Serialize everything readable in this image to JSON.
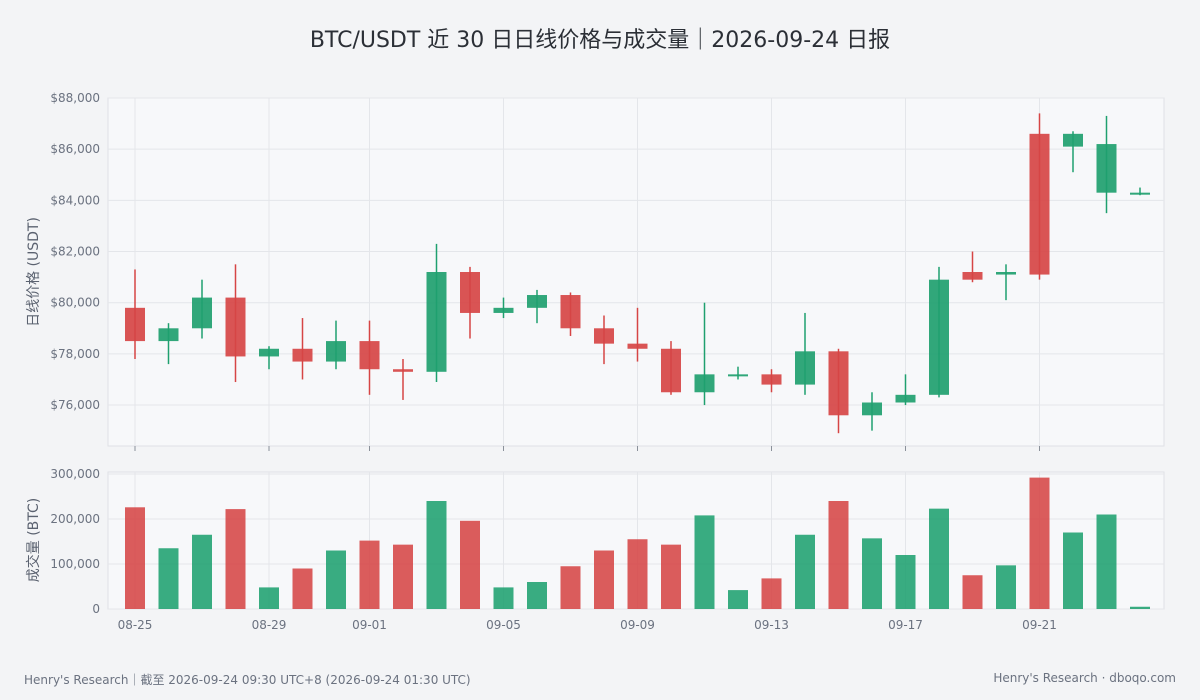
{
  "title": "BTC/USDT 近 30 日日线价格与成交量｜2026-09-24 日报",
  "footer": {
    "left": "Henry's Research｜截至 2026-09-24 09:30 UTC+8 (2026-09-24 01:30 UTC)",
    "right": "Henry's Research · dboqo.com"
  },
  "colors": {
    "up": "#1fa06f",
    "down": "#d64545"
  },
  "chart_data": [
    {
      "type": "candlestick",
      "ylabel": "日线价格 (USDT)",
      "ylim": [
        74400,
        88000
      ],
      "yticks": [
        "$76,000",
        "$78,000",
        "$80,000",
        "$82,000",
        "$84,000",
        "$86,000",
        "$88,000"
      ],
      "ytick_values": [
        76000,
        78000,
        80000,
        82000,
        84000,
        86000,
        88000
      ],
      "xticks": [
        "08-25",
        "08-29",
        "09-01",
        "09-05",
        "09-09",
        "09-13",
        "09-17",
        "09-21"
      ],
      "grid": true,
      "dates": [
        "08-25",
        "08-26",
        "08-27",
        "08-28",
        "08-29",
        "08-30",
        "08-31",
        "09-01",
        "09-02",
        "09-03",
        "09-04",
        "09-05",
        "09-06",
        "09-07",
        "09-08",
        "09-09",
        "09-10",
        "09-11",
        "09-12",
        "09-13",
        "09-14",
        "09-15",
        "09-16",
        "09-17",
        "09-18",
        "09-19",
        "09-20",
        "09-21",
        "09-22",
        "09-23",
        "09-24"
      ],
      "open": [
        79800,
        78500,
        79000,
        80200,
        77900,
        78200,
        77700,
        78500,
        77400,
        77300,
        81200,
        79600,
        79800,
        80300,
        79000,
        78400,
        78200,
        76500,
        77200,
        77200,
        76800,
        78100,
        75600,
        76100,
        76400,
        81200,
        81100,
        86600,
        86100,
        84300,
        84300
      ],
      "high": [
        81300,
        79200,
        80900,
        81500,
        78300,
        79400,
        79300,
        79300,
        77800,
        82300,
        81400,
        80200,
        80500,
        80400,
        79500,
        79800,
        78500,
        80000,
        77500,
        77400,
        79600,
        78200,
        76500,
        77200,
        81400,
        82000,
        81500,
        87400,
        86700,
        87300,
        84500
      ],
      "low": [
        77800,
        77600,
        78600,
        76900,
        77400,
        77000,
        77400,
        76400,
        76200,
        76900,
        78600,
        79400,
        79200,
        78700,
        77600,
        77700,
        76400,
        76000,
        77000,
        76500,
        76400,
        74900,
        75000,
        76000,
        76300,
        80800,
        80100,
        80900,
        85100,
        83500,
        84200
      ],
      "close": [
        78500,
        79000,
        80200,
        77900,
        78200,
        77700,
        78500,
        77400,
        77300,
        81200,
        79600,
        79800,
        80300,
        79000,
        78400,
        78200,
        76500,
        77200,
        77200,
        76800,
        78100,
        75600,
        76100,
        76400,
        80900,
        80900,
        81200,
        81100,
        86600,
        86200,
        84300
      ]
    },
    {
      "type": "bar",
      "ylabel": "成交量 (BTC)",
      "ylim": [
        0,
        300000
      ],
      "yticks": [
        "0",
        "100,000",
        "200,000",
        "300,000"
      ],
      "ytick_values": [
        0,
        100000,
        200000,
        300000
      ],
      "xticks": [
        "08-25",
        "08-29",
        "09-01",
        "09-05",
        "09-09",
        "09-13",
        "09-17",
        "09-21"
      ],
      "grid": true,
      "values": [
        226000,
        135000,
        165000,
        222000,
        48000,
        90000,
        130000,
        152000,
        143000,
        240000,
        196000,
        48000,
        60000,
        95000,
        130000,
        155000,
        143000,
        208000,
        42000,
        68000,
        165000,
        240000,
        157000,
        120000,
        223000,
        75000,
        97000,
        292000,
        170000,
        210000,
        5000
      ]
    }
  ]
}
